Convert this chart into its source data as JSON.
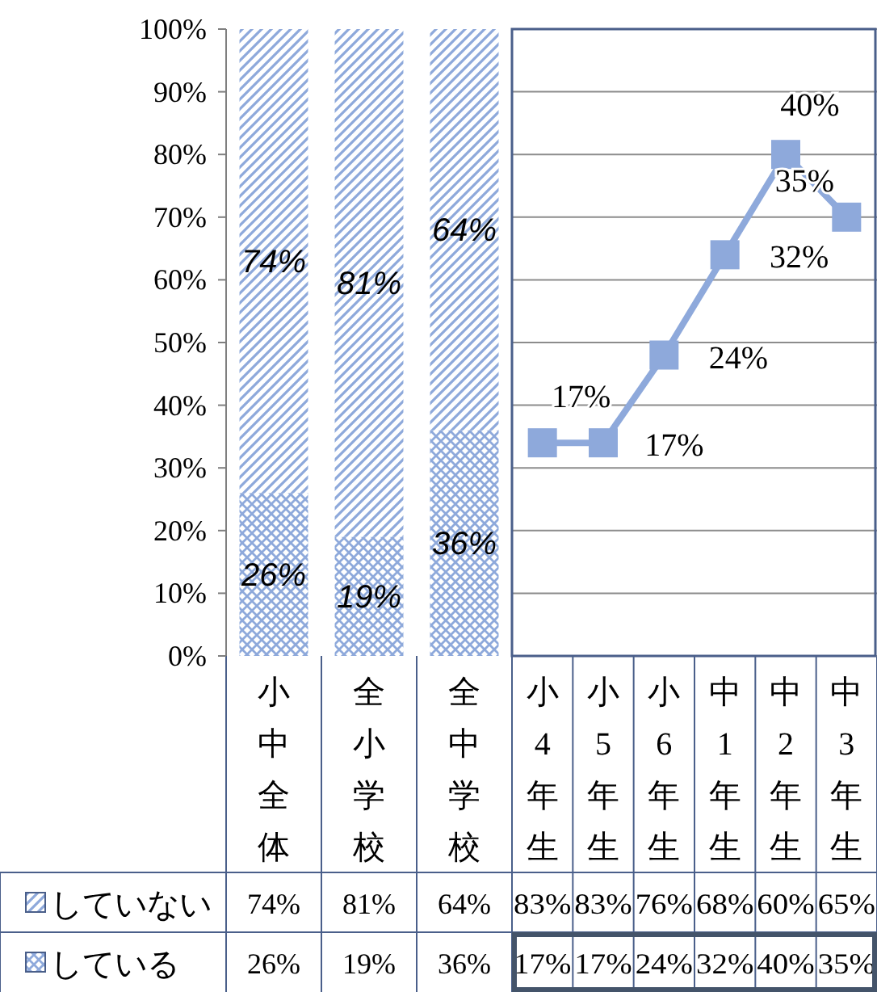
{
  "chart_data": [
    {
      "type": "bar",
      "stacked": true,
      "categories": [
        "小中全体",
        "全小学校",
        "全中学校"
      ],
      "series": [
        {
          "name": "している",
          "color": "#8ea9db",
          "values": [
            26,
            19,
            36
          ],
          "value_labels": [
            "26%",
            "19%",
            "36%"
          ]
        },
        {
          "name": "していない",
          "color": "#8ea9db",
          "values": [
            74,
            81,
            64
          ],
          "value_labels": [
            "74%",
            "81%",
            "64%"
          ]
        }
      ],
      "ylim": [
        0,
        100
      ],
      "legend": "bottom left",
      "yticks": [
        {
          "value": 0,
          "label": "0%"
        },
        {
          "value": 10,
          "label": "10%"
        },
        {
          "value": 20,
          "label": "20%"
        },
        {
          "value": 30,
          "label": "30%"
        },
        {
          "value": 40,
          "label": "40%"
        },
        {
          "value": 50,
          "label": "50%"
        },
        {
          "value": 60,
          "label": "60%"
        },
        {
          "value": 70,
          "label": "70%"
        },
        {
          "value": 80,
          "label": "80%"
        },
        {
          "value": 90,
          "label": "90%"
        },
        {
          "value": 100,
          "label": "100%"
        }
      ]
    },
    {
      "type": "line",
      "categories": [
        "小4年生",
        "小5年生",
        "小6年生",
        "中1年生",
        "中2年生",
        "中3年生"
      ],
      "series": [
        {
          "color": "#8ea9db",
          "values": [
            17,
            17,
            24,
            32,
            40,
            35
          ],
          "value_labels": [
            "17%",
            "17%",
            "24%",
            "32%",
            "40%",
            "35%"
          ]
        }
      ],
      "ylim": [
        0,
        50
      ],
      "yticks": [
        {
          "value": 0,
          "label": null
        },
        {
          "value": 5,
          "label": null
        },
        {
          "value": 10,
          "label": null
        },
        {
          "value": 15,
          "label": null
        },
        {
          "value": 20,
          "label": null
        },
        {
          "value": 25,
          "label": null
        },
        {
          "value": 30,
          "label": null
        },
        {
          "value": 35,
          "label": null
        },
        {
          "value": 40,
          "label": null
        },
        {
          "value": 45,
          "label": null
        },
        {
          "value": 50,
          "label": null
        }
      ],
      "tick_labels": "x",
      "grid": "y",
      "marker": "square",
      "annotations": [
        "83%",
        "83%",
        "76%",
        "68%",
        "60%",
        "65%"
      ]
    }
  ]
}
